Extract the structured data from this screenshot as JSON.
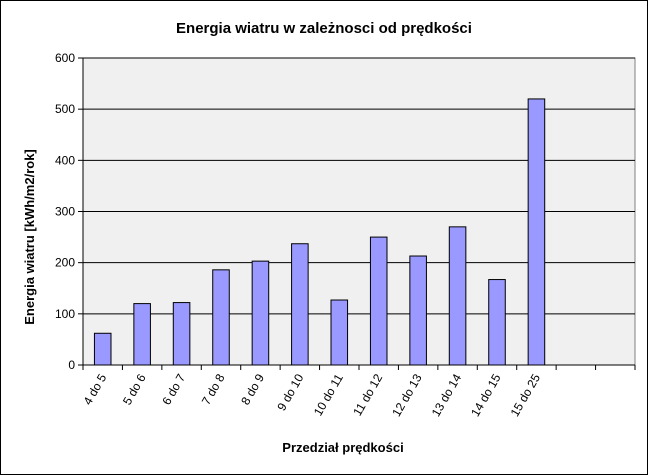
{
  "chart_data": {
    "type": "bar",
    "title": "Energia wiatru w zależnosci od prędkości",
    "xlabel": "Przedział prędkości",
    "ylabel": "Energia wiatru [kWh/m2/rok]",
    "categories": [
      "4 do 5",
      "5 do 6",
      "6 do 7",
      "7 do 8",
      "8 do 9",
      "9 do 10",
      "10 do 11",
      "11 do 12",
      "12 do 13",
      "13 do 14",
      "14 do 15",
      "15 do 25",
      "",
      ""
    ],
    "values": [
      62,
      120,
      122,
      186,
      203,
      237,
      127,
      250,
      213,
      270,
      167,
      520,
      null,
      null
    ],
    "ylim": [
      0,
      600
    ],
    "yticks": [
      0,
      100,
      200,
      300,
      400,
      500,
      600
    ],
    "grid": true,
    "legend": "none",
    "colors": {
      "bar": "#9999ff",
      "bar_stroke": "#000000",
      "plot_bg": "#f0f0f0"
    }
  }
}
